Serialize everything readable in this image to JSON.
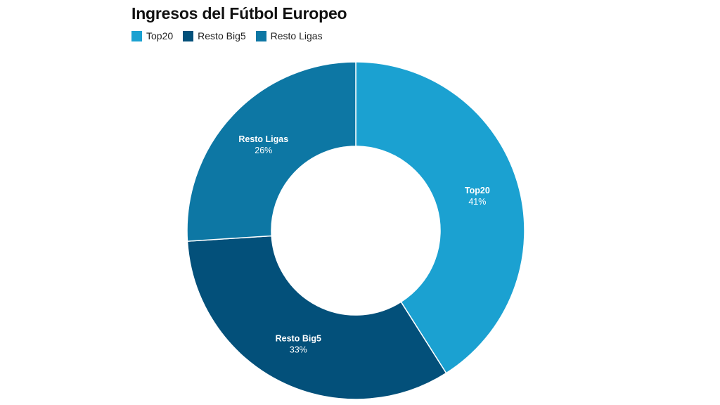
{
  "chart_data": {
    "type": "pie",
    "donut": true,
    "title": "Ingresos del Fútbol Europeo",
    "legend_position": "top-left",
    "categories": [
      "Top20",
      "Resto Big5",
      "Resto Ligas"
    ],
    "values": [
      41,
      33,
      26
    ],
    "value_labels": [
      "41%",
      "33%",
      "26%"
    ],
    "colors": [
      "#1ba1d1",
      "#03507a",
      "#0d77a4"
    ]
  }
}
